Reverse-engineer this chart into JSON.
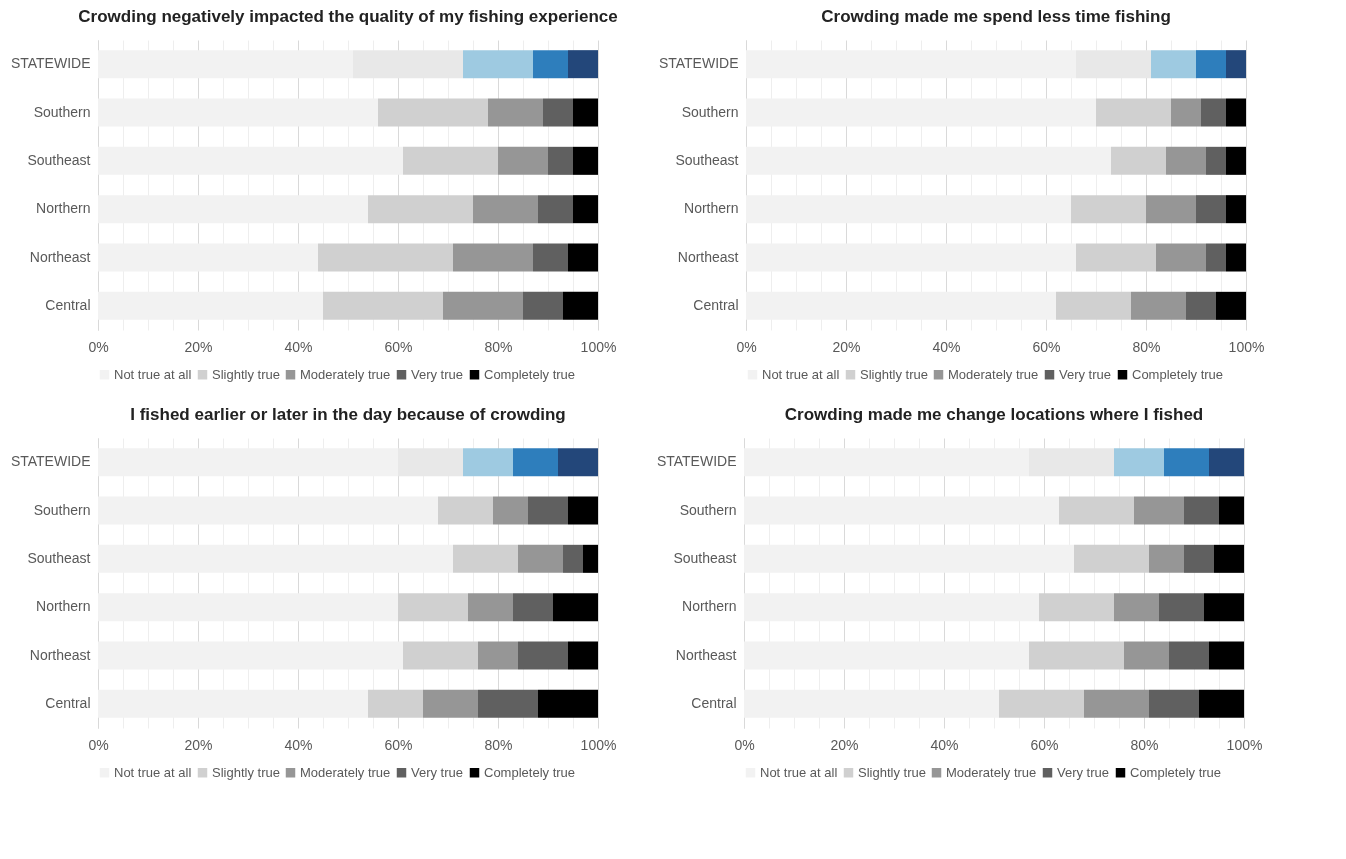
{
  "chart_data": [
    {
      "type": "bar",
      "orientation": "horizontal",
      "stacked": true,
      "title": "Crowding negatively impacted the quality of my fishing experience",
      "categories": [
        "STATEWIDE",
        "Southern",
        "Southeast",
        "Northern",
        "Northeast",
        "Central"
      ],
      "xlim": [
        0,
        100
      ],
      "xticks": [
        {
          "value": 0,
          "label": "0%"
        },
        {
          "value": 5,
          "label": null
        },
        {
          "value": 10,
          "label": null
        },
        {
          "value": 15,
          "label": null
        },
        {
          "value": 20,
          "label": "20%"
        },
        {
          "value": 25,
          "label": null
        },
        {
          "value": 30,
          "label": null
        },
        {
          "value": 35,
          "label": null
        },
        {
          "value": 40,
          "label": "40%"
        },
        {
          "value": 45,
          "label": null
        },
        {
          "value": 50,
          "label": null
        },
        {
          "value": 55,
          "label": null
        },
        {
          "value": 60,
          "label": "60%"
        },
        {
          "value": 65,
          "label": null
        },
        {
          "value": 70,
          "label": null
        },
        {
          "value": 75,
          "label": null
        },
        {
          "value": 80,
          "label": "80%"
        },
        {
          "value": 85,
          "label": null
        },
        {
          "value": 90,
          "label": null
        },
        {
          "value": 95,
          "label": null
        },
        {
          "value": 100,
          "label": "100%"
        }
      ],
      "grid": "x",
      "legend": "bottom",
      "series": [
        {
          "name": "Not true at all",
          "color": "#f2f2f2",
          "colors": [
            "#f2f2f2",
            "#f2f2f2",
            "#f2f2f2",
            "#f2f2f2",
            "#f2f2f2",
            "#f2f2f2"
          ],
          "values": [
            51,
            56,
            61,
            54,
            44,
            45
          ]
        },
        {
          "name": "Slightly true",
          "color": "#d0d0d0",
          "colors": [
            "#e8e8e8",
            "#d0d0d0",
            "#d0d0d0",
            "#d0d0d0",
            "#d0d0d0",
            "#d0d0d0"
          ],
          "values": [
            22,
            22,
            19,
            21,
            27,
            24
          ]
        },
        {
          "name": "Moderately true",
          "color": "#969696",
          "colors": [
            "#9ecae1",
            "#969696",
            "#969696",
            "#969696",
            "#969696",
            "#969696"
          ],
          "values": [
            14,
            11,
            10,
            13,
            16,
            16
          ]
        },
        {
          "name": "Very true",
          "color": "#606060",
          "colors": [
            "#2e7ebc",
            "#606060",
            "#606060",
            "#606060",
            "#606060",
            "#606060"
          ],
          "values": [
            7,
            6,
            5,
            7,
            7,
            8
          ]
        },
        {
          "name": "Completely true",
          "color": "#000000",
          "colors": [
            "#23477a",
            "#000000",
            "#000000",
            "#000000",
            "#000000",
            "#000000"
          ],
          "values": [
            6,
            5,
            5,
            5,
            6,
            7
          ]
        }
      ]
    },
    {
      "type": "bar",
      "orientation": "horizontal",
      "stacked": true,
      "title": "Crowding made me spend less time fishing",
      "categories": [
        "STATEWIDE",
        "Southern",
        "Southeast",
        "Northern",
        "Northeast",
        "Central"
      ],
      "xlim": [
        0,
        100
      ],
      "xticks": [
        {
          "value": 0,
          "label": "0%"
        },
        {
          "value": 5,
          "label": null
        },
        {
          "value": 10,
          "label": null
        },
        {
          "value": 15,
          "label": null
        },
        {
          "value": 20,
          "label": "20%"
        },
        {
          "value": 25,
          "label": null
        },
        {
          "value": 30,
          "label": null
        },
        {
          "value": 35,
          "label": null
        },
        {
          "value": 40,
          "label": "40%"
        },
        {
          "value": 45,
          "label": null
        },
        {
          "value": 50,
          "label": null
        },
        {
          "value": 55,
          "label": null
        },
        {
          "value": 60,
          "label": "60%"
        },
        {
          "value": 65,
          "label": null
        },
        {
          "value": 70,
          "label": null
        },
        {
          "value": 75,
          "label": null
        },
        {
          "value": 80,
          "label": "80%"
        },
        {
          "value": 85,
          "label": null
        },
        {
          "value": 90,
          "label": null
        },
        {
          "value": 95,
          "label": null
        },
        {
          "value": 100,
          "label": "100%"
        }
      ],
      "grid": "x",
      "legend": "bottom",
      "series": [
        {
          "name": "Not true at all",
          "color": "#f2f2f2",
          "colors": [
            "#f2f2f2",
            "#f2f2f2",
            "#f2f2f2",
            "#f2f2f2",
            "#f2f2f2",
            "#f2f2f2"
          ],
          "values": [
            66,
            70,
            73,
            65,
            66,
            62
          ]
        },
        {
          "name": "Slightly true",
          "color": "#d0d0d0",
          "colors": [
            "#e8e8e8",
            "#d0d0d0",
            "#d0d0d0",
            "#d0d0d0",
            "#d0d0d0",
            "#d0d0d0"
          ],
          "values": [
            15,
            15,
            11,
            15,
            16,
            15
          ]
        },
        {
          "name": "Moderately true",
          "color": "#969696",
          "colors": [
            "#9ecae1",
            "#969696",
            "#969696",
            "#969696",
            "#969696",
            "#969696"
          ],
          "values": [
            9,
            6,
            8,
            10,
            10,
            11
          ]
        },
        {
          "name": "Very true",
          "color": "#606060",
          "colors": [
            "#2e7ebc",
            "#606060",
            "#606060",
            "#606060",
            "#606060",
            "#606060"
          ],
          "values": [
            6,
            5,
            4,
            6,
            4,
            6
          ]
        },
        {
          "name": "Completely true",
          "color": "#000000",
          "colors": [
            "#23477a",
            "#000000",
            "#000000",
            "#000000",
            "#000000",
            "#000000"
          ],
          "values": [
            4,
            4,
            4,
            4,
            4,
            6
          ]
        }
      ]
    },
    {
      "type": "bar",
      "orientation": "horizontal",
      "stacked": true,
      "title": "I fished earlier or later in the day because of crowding",
      "categories": [
        "STATEWIDE",
        "Southern",
        "Southeast",
        "Northern",
        "Northeast",
        "Central"
      ],
      "xlim": [
        0,
        100
      ],
      "xticks": [
        {
          "value": 0,
          "label": "0%"
        },
        {
          "value": 5,
          "label": null
        },
        {
          "value": 10,
          "label": null
        },
        {
          "value": 15,
          "label": null
        },
        {
          "value": 20,
          "label": "20%"
        },
        {
          "value": 25,
          "label": null
        },
        {
          "value": 30,
          "label": null
        },
        {
          "value": 35,
          "label": null
        },
        {
          "value": 40,
          "label": "40%"
        },
        {
          "value": 45,
          "label": null
        },
        {
          "value": 50,
          "label": null
        },
        {
          "value": 55,
          "label": null
        },
        {
          "value": 60,
          "label": "60%"
        },
        {
          "value": 65,
          "label": null
        },
        {
          "value": 70,
          "label": null
        },
        {
          "value": 75,
          "label": null
        },
        {
          "value": 80,
          "label": "80%"
        },
        {
          "value": 85,
          "label": null
        },
        {
          "value": 90,
          "label": null
        },
        {
          "value": 95,
          "label": null
        },
        {
          "value": 100,
          "label": "100%"
        }
      ],
      "grid": "x",
      "legend": "bottom",
      "series": [
        {
          "name": "Not true at all",
          "color": "#f2f2f2",
          "colors": [
            "#f2f2f2",
            "#f2f2f2",
            "#f2f2f2",
            "#f2f2f2",
            "#f2f2f2",
            "#f2f2f2"
          ],
          "values": [
            60,
            68,
            71,
            60,
            61,
            54
          ]
        },
        {
          "name": "Slightly true",
          "color": "#d0d0d0",
          "colors": [
            "#e8e8e8",
            "#d0d0d0",
            "#d0d0d0",
            "#d0d0d0",
            "#d0d0d0",
            "#d0d0d0"
          ],
          "values": [
            13,
            11,
            13,
            14,
            15,
            11
          ]
        },
        {
          "name": "Moderately true",
          "color": "#969696",
          "colors": [
            "#9ecae1",
            "#969696",
            "#969696",
            "#969696",
            "#969696",
            "#969696"
          ],
          "values": [
            10,
            7,
            9,
            9,
            8,
            11
          ]
        },
        {
          "name": "Very true",
          "color": "#606060",
          "colors": [
            "#2e7ebc",
            "#606060",
            "#606060",
            "#606060",
            "#606060",
            "#606060"
          ],
          "values": [
            9,
            8,
            4,
            8,
            10,
            12
          ]
        },
        {
          "name": "Completely true",
          "color": "#000000",
          "colors": [
            "#23477a",
            "#000000",
            "#000000",
            "#000000",
            "#000000",
            "#000000"
          ],
          "values": [
            8,
            6,
            3,
            9,
            6,
            12
          ]
        }
      ]
    },
    {
      "type": "bar",
      "orientation": "horizontal",
      "stacked": true,
      "title": "Crowding made me change locations where I fished",
      "categories": [
        "STATEWIDE",
        "Southern",
        "Southeast",
        "Northern",
        "Northeast",
        "Central"
      ],
      "xlim": [
        0,
        100
      ],
      "xticks": [
        {
          "value": 0,
          "label": "0%"
        },
        {
          "value": 5,
          "label": null
        },
        {
          "value": 10,
          "label": null
        },
        {
          "value": 15,
          "label": null
        },
        {
          "value": 20,
          "label": "20%"
        },
        {
          "value": 25,
          "label": null
        },
        {
          "value": 30,
          "label": null
        },
        {
          "value": 35,
          "label": null
        },
        {
          "value": 40,
          "label": "40%"
        },
        {
          "value": 45,
          "label": null
        },
        {
          "value": 50,
          "label": null
        },
        {
          "value": 55,
          "label": null
        },
        {
          "value": 60,
          "label": "60%"
        },
        {
          "value": 65,
          "label": null
        },
        {
          "value": 70,
          "label": null
        },
        {
          "value": 75,
          "label": null
        },
        {
          "value": 80,
          "label": "80%"
        },
        {
          "value": 85,
          "label": null
        },
        {
          "value": 90,
          "label": null
        },
        {
          "value": 95,
          "label": null
        },
        {
          "value": 100,
          "label": "100%"
        }
      ],
      "grid": "x",
      "legend": "bottom",
      "series": [
        {
          "name": "Not true at all",
          "color": "#f2f2f2",
          "colors": [
            "#f2f2f2",
            "#f2f2f2",
            "#f2f2f2",
            "#f2f2f2",
            "#f2f2f2",
            "#f2f2f2"
          ],
          "values": [
            57,
            63,
            66,
            59,
            57,
            51
          ]
        },
        {
          "name": "Slightly true",
          "color": "#d0d0d0",
          "colors": [
            "#e8e8e8",
            "#d0d0d0",
            "#d0d0d0",
            "#d0d0d0",
            "#d0d0d0",
            "#d0d0d0"
          ],
          "values": [
            17,
            15,
            15,
            15,
            19,
            17
          ]
        },
        {
          "name": "Moderately true",
          "color": "#969696",
          "colors": [
            "#9ecae1",
            "#969696",
            "#969696",
            "#969696",
            "#969696",
            "#969696"
          ],
          "values": [
            10,
            10,
            7,
            9,
            9,
            13
          ]
        },
        {
          "name": "Very true",
          "color": "#606060",
          "colors": [
            "#2e7ebc",
            "#606060",
            "#606060",
            "#606060",
            "#606060",
            "#606060"
          ],
          "values": [
            9,
            7,
            6,
            9,
            8,
            10
          ]
        },
        {
          "name": "Completely true",
          "color": "#000000",
          "colors": [
            "#23477a",
            "#000000",
            "#000000",
            "#000000",
            "#000000",
            "#000000"
          ],
          "values": [
            7,
            5,
            6,
            8,
            7,
            9
          ]
        }
      ]
    }
  ]
}
